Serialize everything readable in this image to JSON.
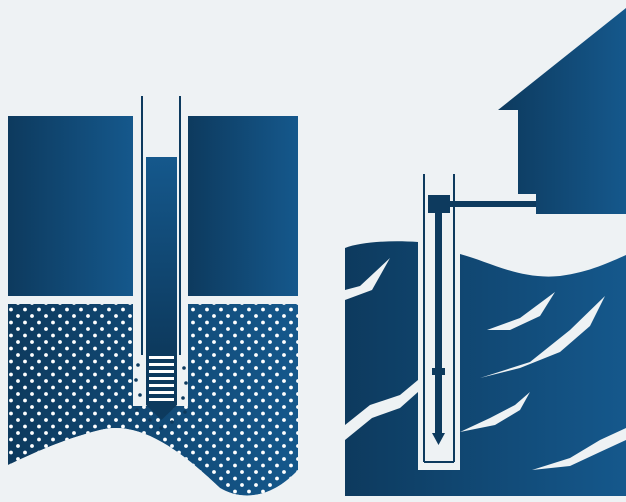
{
  "colors": {
    "background": "#eef2f4",
    "navy_dark": "#0d3a5e",
    "navy_mid": "#114c7a",
    "navy_light": "#15588c",
    "highlight": "#ffffff"
  },
  "icons": {
    "left_panel": "well-cross-section-icon",
    "right_panel": "house-submersible-pump-icon"
  }
}
